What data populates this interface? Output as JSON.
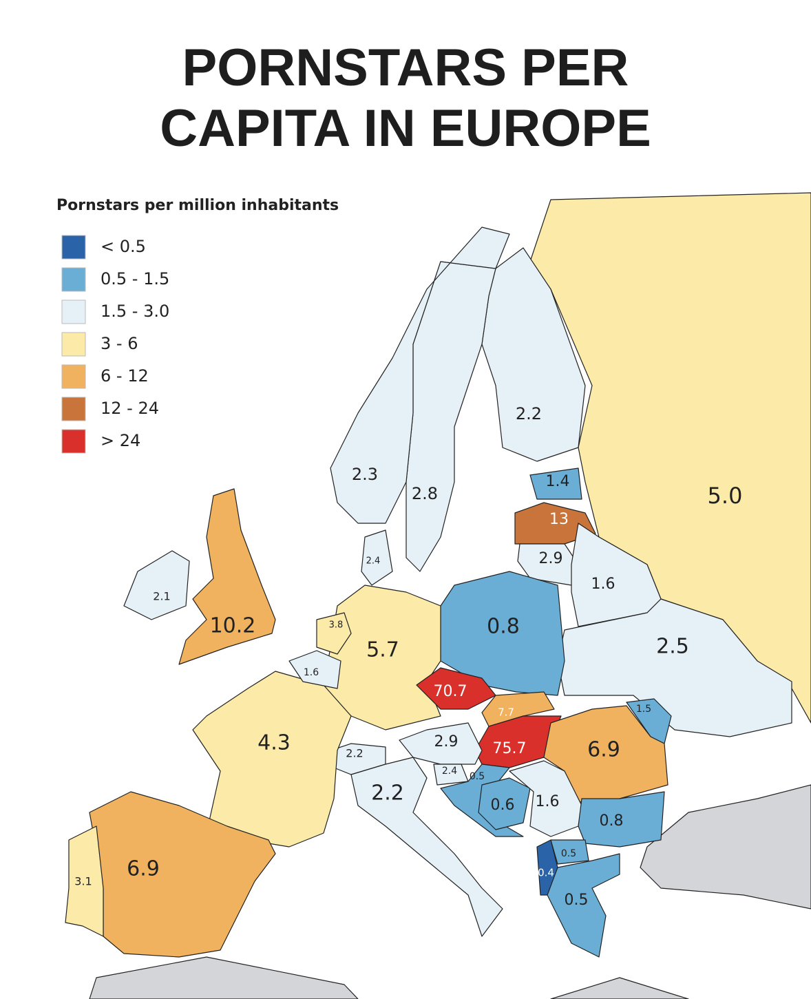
{
  "header": {
    "title_lines": [
      "PORNSTARS PER",
      "CAPITA IN EUROPE"
    ]
  },
  "legend": {
    "title": "Pornstars per million inhabitants",
    "items": [
      {
        "label": "< 0.5",
        "color": "#2b63a8"
      },
      {
        "label": "0.5 - 1.5",
        "color": "#6aaed6"
      },
      {
        "label": "1.5 - 3.0",
        "color": "#e6f0f7"
      },
      {
        "label": "3 - 6",
        "color": "#fbeaa8"
      },
      {
        "label": "6 - 12",
        "color": "#f0b25e"
      },
      {
        "label": "12 - 24",
        "color": "#c8743a"
      },
      {
        "label": "> 24",
        "color": "#d9302b"
      }
    ]
  },
  "regions": [
    {
      "label": "5.0",
      "color": "#fbeaa8"
    },
    {
      "label": "2.2",
      "color": "#e6f0f7"
    },
    {
      "label": "2.8",
      "color": "#e6f0f7"
    },
    {
      "label": "2.3",
      "color": "#e6f0f7"
    },
    {
      "label": "1.4",
      "color": "#6aaed6"
    },
    {
      "label": "13",
      "color": "#c8743a"
    },
    {
      "label": "2.9",
      "color": "#e6f0f7"
    },
    {
      "label": "1.6",
      "color": "#e6f0f7"
    },
    {
      "label": "2.5",
      "color": "#e6f0f7"
    },
    {
      "label": "0.8",
      "color": "#6aaed6"
    },
    {
      "label": "5.7",
      "color": "#fbeaa8"
    },
    {
      "label": "70.7",
      "color": "#d9302b"
    },
    {
      "label": "7.7",
      "color": "#f0b25e"
    },
    {
      "label": "75.7",
      "color": "#d9302b"
    },
    {
      "label": "2.9",
      "color": "#e6f0f7"
    },
    {
      "label": "2.2",
      "color": "#e6f0f7"
    },
    {
      "label": "4.3",
      "color": "#fbeaa8"
    },
    {
      "label": "2.2",
      "color": "#e6f0f7"
    },
    {
      "label": "6.9",
      "color": "#f0b25e"
    },
    {
      "label": "3.1",
      "color": "#fbeaa8"
    },
    {
      "label": "10.2",
      "color": "#f0b25e"
    },
    {
      "label": "2.1",
      "color": "#e6f0f7"
    },
    {
      "label": "2.4",
      "color": "#e6f0f7"
    },
    {
      "label": "3.8",
      "color": "#fbeaa8"
    },
    {
      "label": "1.6",
      "color": "#e6f0f7"
    },
    {
      "label": "1.5",
      "color": "#6aaed6"
    },
    {
      "label": "6.9",
      "color": "#f0b25e"
    },
    {
      "label": "2.4",
      "color": "#e6f0f7"
    },
    {
      "label": "0.5",
      "color": "#6aaed6"
    },
    {
      "label": "0.6",
      "color": "#6aaed6"
    },
    {
      "label": "1.6",
      "color": "#e6f0f7"
    },
    {
      "label": "0.8",
      "color": "#6aaed6"
    },
    {
      "label": "0.5",
      "color": "#6aaed6"
    },
    {
      "label": "0.4",
      "color": "#2b63a8"
    },
    {
      "label": "0.5",
      "color": "#6aaed6"
    }
  ]
}
